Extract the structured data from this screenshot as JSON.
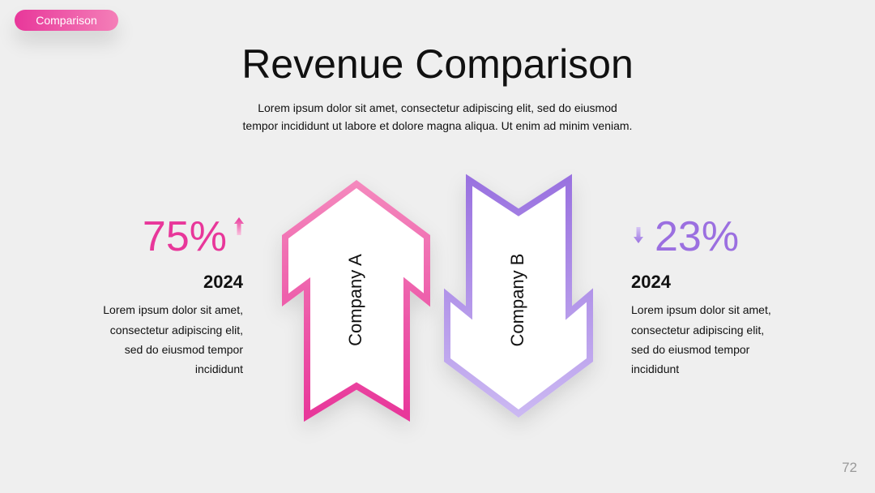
{
  "tag": "Comparison",
  "title": "Revenue Comparison",
  "subtitle": [
    "Lorem ipsum dolor sit amet, consectetur adipiscing elit, sed do eiusmod",
    "tempor incididunt ut labore et dolore magna aliqua. Ut enim ad minim veniam."
  ],
  "left": {
    "percent": "75%",
    "year": "2024",
    "description": [
      "Lorem ipsum dolor sit amet,",
      "consectetur adipiscing elit,",
      "sed do eiusmod tempor",
      "incididunt"
    ]
  },
  "arrows": [
    {
      "label": "Company A"
    },
    {
      "label": "Company B"
    }
  ],
  "right": {
    "percent": "23%",
    "year": "2024",
    "description": [
      "Lorem ipsum dolor sit amet,",
      "consectetur adipiscing elit,",
      "sed do eiusmod tempor",
      "incididunt"
    ]
  },
  "page_number": "72"
}
